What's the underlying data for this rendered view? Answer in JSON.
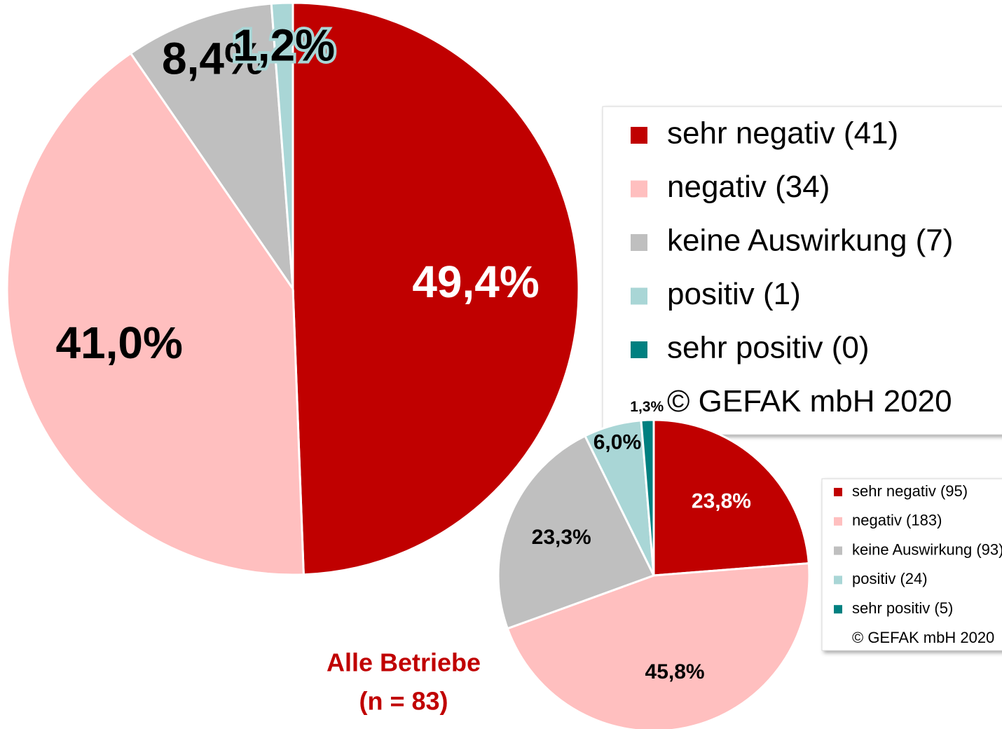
{
  "chart_data": [
    {
      "type": "pie",
      "title": "Alle Betriebe",
      "subtitle": "(n = 83)",
      "categories": [
        "sehr negativ (41)",
        "negativ (34)",
        "keine Auswirkung (7)",
        "positiv (1)",
        "sehr positiv (0)"
      ],
      "values": [
        49.4,
        41.0,
        8.4,
        1.2,
        0
      ],
      "value_labels": [
        "49,4%",
        "41,0%",
        "8,4%",
        "1,2%",
        null
      ],
      "colors": [
        "#c00000",
        "#ffbfbf",
        "#bfbfbf",
        "#a9d6d6",
        "#008080"
      ],
      "source": "© GEFAK mbH 2020"
    },
    {
      "type": "pie",
      "categories": [
        "sehr negativ (95)",
        "negativ (183)",
        "keine Auswirkung (93)",
        "positiv (24)",
        "sehr positiv (5)"
      ],
      "values": [
        23.8,
        45.8,
        23.3,
        6.0,
        1.3
      ],
      "value_labels": [
        "23,8%",
        "45,8%",
        "23,3%",
        "6,0%",
        "1,3%"
      ],
      "colors": [
        "#c00000",
        "#ffbfbf",
        "#bfbfbf",
        "#a9d6d6",
        "#008080"
      ],
      "source": "© GEFAK mbH 2020"
    }
  ]
}
